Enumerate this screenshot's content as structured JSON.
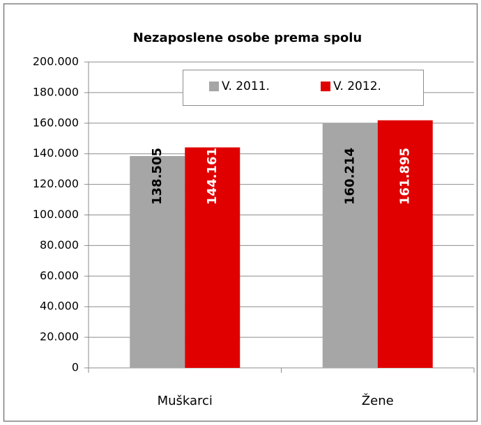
{
  "chart_data": {
    "type": "bar",
    "title": "Nezaposlene osobe prema spolu",
    "categories": [
      "Muškarci",
      "Žene"
    ],
    "series": [
      {
        "name": "V. 2011.",
        "color": "#a6a6a6",
        "values": [
          138505,
          160214
        ],
        "value_labels": [
          "138.505",
          "160.214"
        ]
      },
      {
        "name": "V. 2012.",
        "color": "#e00000",
        "values": [
          144161,
          161895
        ],
        "value_labels": [
          "144.161",
          "161.895"
        ]
      }
    ],
    "ylim": [
      0,
      200000
    ],
    "yticks": [
      0,
      {
        "value": 20000,
        "label": "20.000"
      },
      {
        "value": 40000,
        "label": "40.000"
      },
      {
        "value": 60000,
        "label": "60.000"
      },
      {
        "value": 80000,
        "label": "80.000"
      },
      {
        "value": 100000,
        "label": "100.000"
      },
      {
        "value": 120000,
        "label": "120.000"
      },
      {
        "value": 140000,
        "label": "140.000"
      },
      {
        "value": 160000,
        "label": "160.000"
      },
      {
        "value": 180000,
        "label": "180.000"
      },
      {
        "value": 200000,
        "label": "200.000"
      }
    ],
    "grid": true,
    "legend": "top"
  }
}
